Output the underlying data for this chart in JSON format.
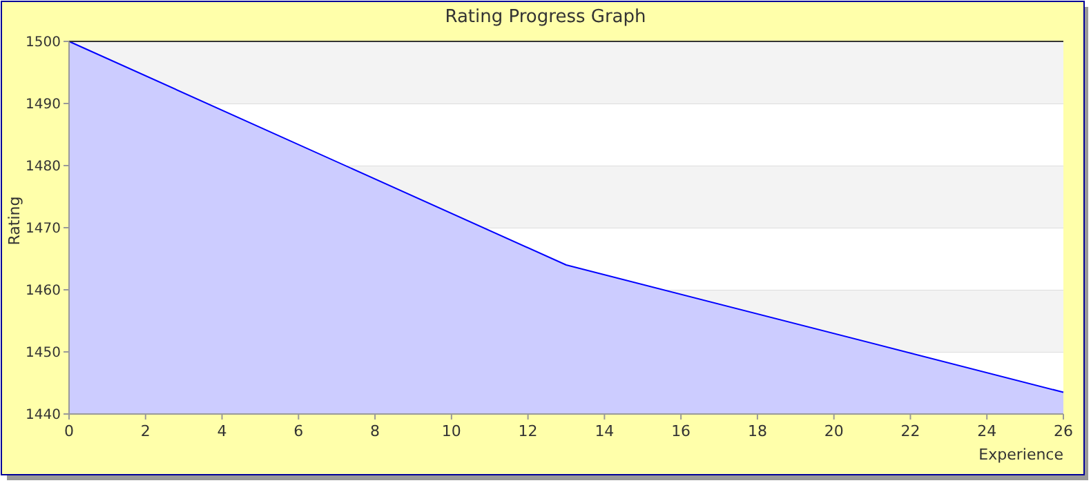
{
  "chart_data": {
    "type": "area",
    "title": "Rating Progress Graph",
    "xlabel": "Experience",
    "ylabel": "Rating",
    "x": [
      0,
      13,
      26
    ],
    "series": [
      {
        "color": "#0000ff",
        "values": [
          1500,
          1464,
          1443.5
        ]
      }
    ],
    "xlim": [
      0,
      26
    ],
    "xticks": [
      0,
      2,
      4,
      6,
      8,
      10,
      12,
      14,
      16,
      18,
      20,
      22,
      24,
      26
    ],
    "ylim": [
      1440,
      1500
    ],
    "yticks": [
      1440,
      1450,
      1460,
      1470,
      1480,
      1490,
      1500
    ],
    "grid": "y"
  }
}
